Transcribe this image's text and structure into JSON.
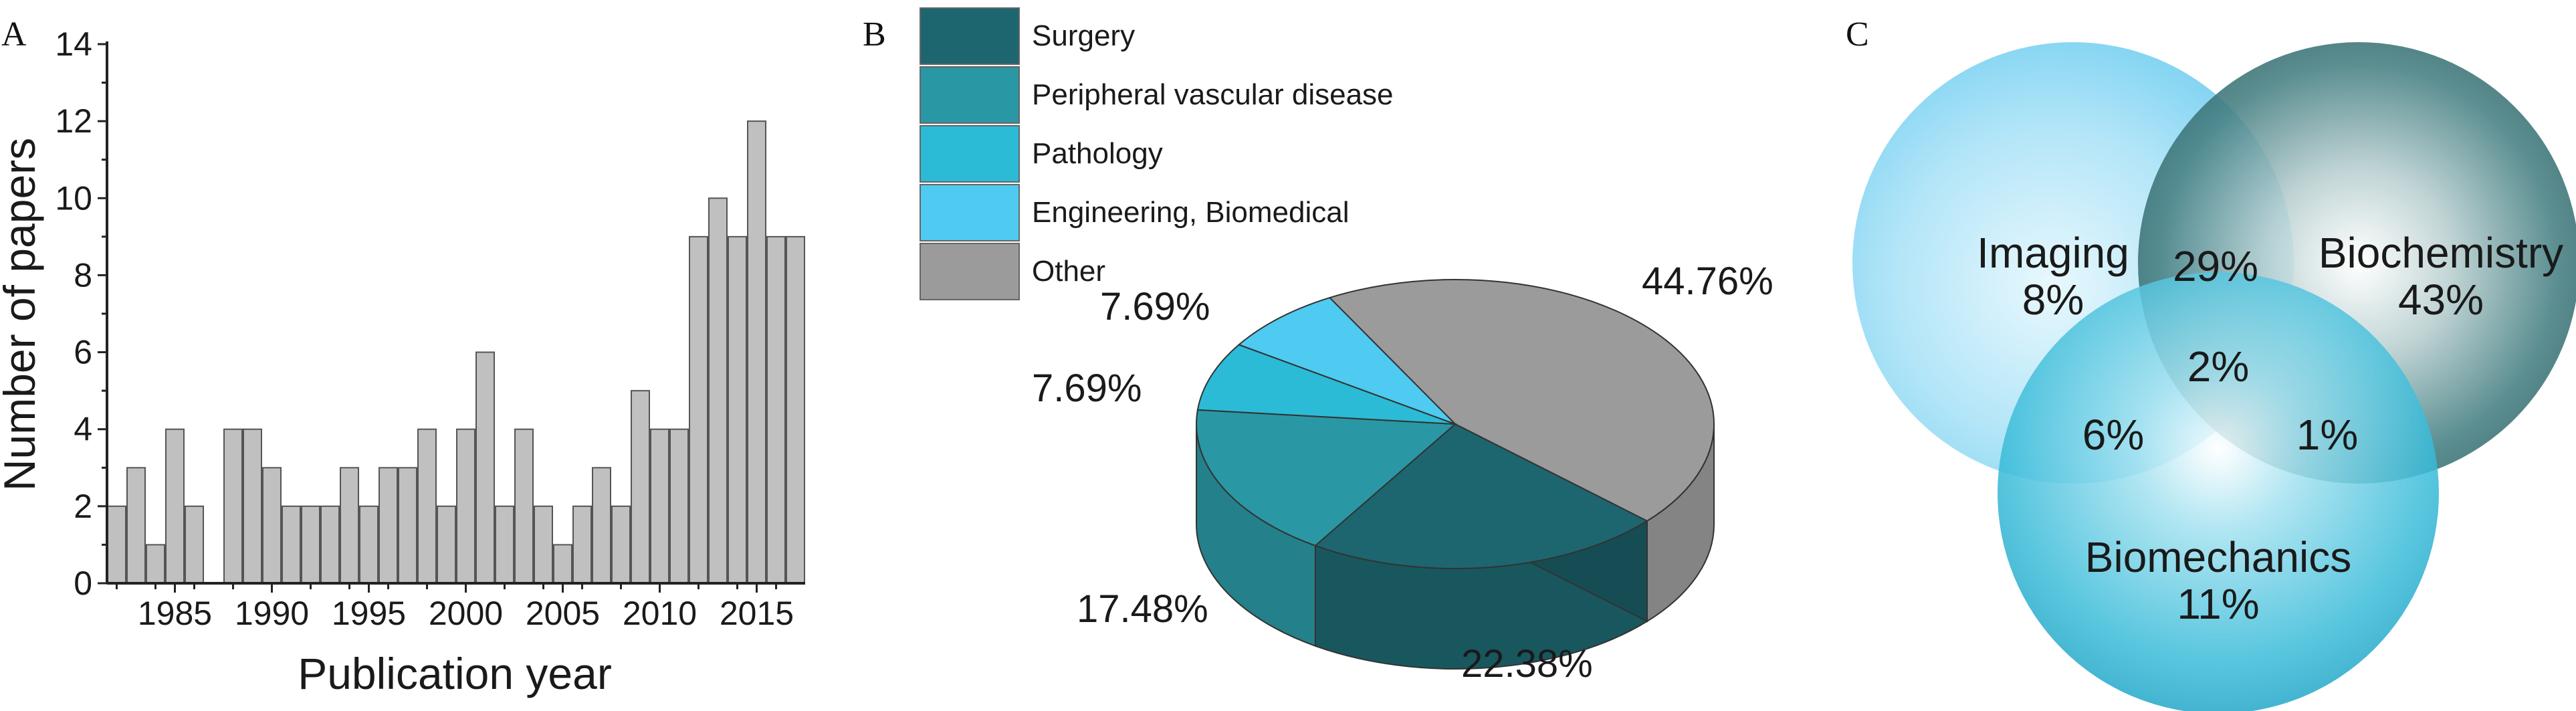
{
  "chart_data": [
    {
      "panel": "A",
      "type": "bar",
      "xlabel": "Publication year",
      "ylabel": "Number of papers",
      "ylim": [
        0,
        14
      ],
      "xlim": [
        1981.5,
        2017.5
      ],
      "yticks": [
        0,
        2,
        4,
        6,
        8,
        10,
        12,
        14
      ],
      "xticks": [
        1985,
        1990,
        1995,
        2000,
        2005,
        2010,
        2015
      ],
      "categories": [
        1982,
        1983,
        1984,
        1985,
        1986,
        1987,
        1988,
        1989,
        1990,
        1991,
        1992,
        1993,
        1994,
        1995,
        1996,
        1997,
        1998,
        1999,
        2000,
        2001,
        2002,
        2003,
        2004,
        2005,
        2006,
        2007,
        2008,
        2009,
        2010,
        2011,
        2012,
        2013,
        2014,
        2015,
        2016,
        2017
      ],
      "values": [
        2,
        3,
        1,
        4,
        2,
        0,
        4,
        4,
        3,
        2,
        2,
        2,
        3,
        2,
        3,
        3,
        4,
        2,
        4,
        6,
        2,
        4,
        2,
        1,
        2,
        3,
        2,
        5,
        4,
        4,
        9,
        10,
        9,
        12,
        9,
        9
      ],
      "bar_color": "#c0c0c0"
    },
    {
      "panel": "B",
      "type": "pie",
      "legend_position": "top-left",
      "slices": [
        {
          "label": "Other",
          "value": 44.76,
          "display": "44.76%",
          "color": "#9b9b9b"
        },
        {
          "label": "Surgery",
          "value": 22.38,
          "display": "22.38%",
          "color": "#1d6670"
        },
        {
          "label": "Peripheral vascular disease",
          "value": 17.48,
          "display": "17.48%",
          "color": "#2a97a4"
        },
        {
          "label": "Pathology",
          "value": 7.69,
          "display": "7.69%",
          "color": "#2bbbd7"
        },
        {
          "label": "Engineering, Biomedical",
          "value": 7.69,
          "display": "7.69%",
          "color": "#4fcaf0"
        }
      ],
      "legend_order": [
        "Surgery",
        "Peripheral vascular disease",
        "Pathology",
        "Engineering, Biomedical",
        "Other"
      ]
    },
    {
      "panel": "C",
      "type": "venn",
      "sets": [
        {
          "label": "Imaging",
          "value": "8%",
          "color": "#8fd8f5"
        },
        {
          "label": "Biochemistry",
          "value": "43%",
          "color": "#2e6f72"
        },
        {
          "label": "Biomechanics",
          "value": "11%",
          "color": "#2ab3d3"
        }
      ],
      "overlaps": {
        "imaging_biochemistry": "29%",
        "imaging_biomechanics": "6%",
        "biochemistry_biomechanics": "1%",
        "all": "2%"
      }
    }
  ]
}
